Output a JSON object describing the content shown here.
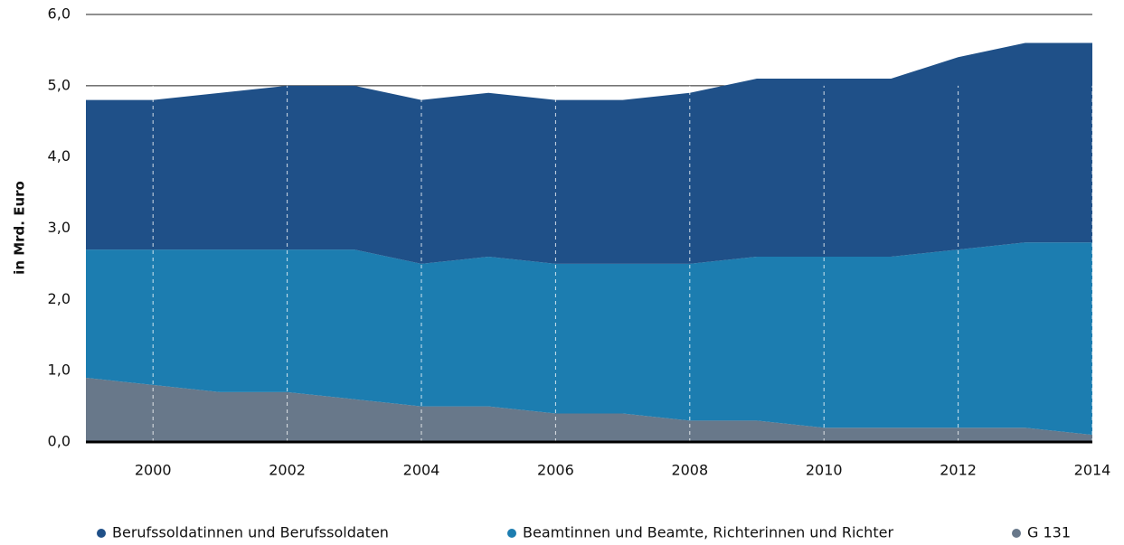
{
  "chart_data": {
    "type": "stacked_area",
    "y_label": "in Mrd. Euro",
    "x": [
      1999,
      2000,
      2001,
      2002,
      2003,
      2004,
      2005,
      2006,
      2007,
      2008,
      2009,
      2010,
      2011,
      2012,
      2013,
      2014
    ],
    "series": [
      {
        "name": "Berufssoldatinnen und Berufssoldaten",
        "color": "#1f5088",
        "values": [
          2.1,
          2.1,
          2.2,
          2.3,
          2.3,
          2.3,
          2.3,
          2.3,
          2.3,
          2.4,
          2.5,
          2.5,
          2.5,
          2.7,
          2.8,
          2.8
        ]
      },
      {
        "name": "Beamtinnen und Beamte, Richterinnen und Richter",
        "color": "#1c7db0",
        "values": [
          1.8,
          1.9,
          2.0,
          2.0,
          2.1,
          2.0,
          2.1,
          2.1,
          2.1,
          2.2,
          2.3,
          2.4,
          2.4,
          2.5,
          2.6,
          2.7
        ]
      },
      {
        "name": "G 131",
        "color": "#68788a",
        "values": [
          0.9,
          0.8,
          0.7,
          0.7,
          0.6,
          0.5,
          0.5,
          0.4,
          0.4,
          0.3,
          0.3,
          0.2,
          0.2,
          0.2,
          0.2,
          0.1
        ]
      }
    ],
    "xlim": [
      1999,
      2014
    ],
    "xticks": [
      2000,
      2002,
      2004,
      2006,
      2008,
      2010,
      2012,
      2014
    ],
    "ylim": [
      0,
      6
    ],
    "yticks": [
      {
        "value": 0,
        "label": "0,0"
      },
      {
        "value": 1,
        "label": "1,0"
      },
      {
        "value": 2,
        "label": "2,0"
      },
      {
        "value": 3,
        "label": "3,0"
      },
      {
        "value": 4,
        "label": "4,0"
      },
      {
        "value": 5,
        "label": "5,0"
      },
      {
        "value": 6,
        "label": "6,0"
      }
    ],
    "grid": true,
    "legend": "bottom"
  }
}
